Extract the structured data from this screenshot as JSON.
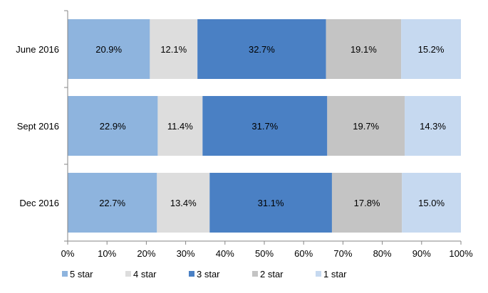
{
  "chart_data": {
    "type": "bar",
    "orientation": "horizontal",
    "stacked": true,
    "percent_stacked": true,
    "categories": [
      "June 2016",
      "Sept 2016",
      "Dec 2016"
    ],
    "series": [
      {
        "name": "5 star",
        "values": [
          20.9,
          22.9,
          22.7
        ],
        "labels": [
          "20.9%",
          "22.9%",
          "22.7%"
        ],
        "color": "#8EB4DE"
      },
      {
        "name": "4 star",
        "values": [
          12.1,
          11.4,
          13.4
        ],
        "labels": [
          "12.1%",
          "11.4%",
          "13.4%"
        ],
        "color": "#DDDDDD"
      },
      {
        "name": "3 star",
        "values": [
          32.7,
          31.7,
          31.1
        ],
        "labels": [
          "32.7%",
          "31.7%",
          "31.1%"
        ],
        "color": "#4A80C4"
      },
      {
        "name": "2 star",
        "values": [
          19.1,
          19.7,
          17.8
        ],
        "labels": [
          "19.1%",
          "19.7%",
          "17.8%"
        ],
        "color": "#C4C4C4"
      },
      {
        "name": "1 star",
        "values": [
          15.2,
          14.3,
          15.0
        ],
        "labels": [
          "15.2%",
          "14.3%",
          "15.0%"
        ],
        "color": "#C6D9F0"
      }
    ],
    "xlim": [
      0,
      100
    ],
    "x_ticks": [
      "0%",
      "10%",
      "20%",
      "30%",
      "40%",
      "50%",
      "60%",
      "70%",
      "80%",
      "90%",
      "100%"
    ],
    "grid": false,
    "legend_position": "bottom"
  }
}
